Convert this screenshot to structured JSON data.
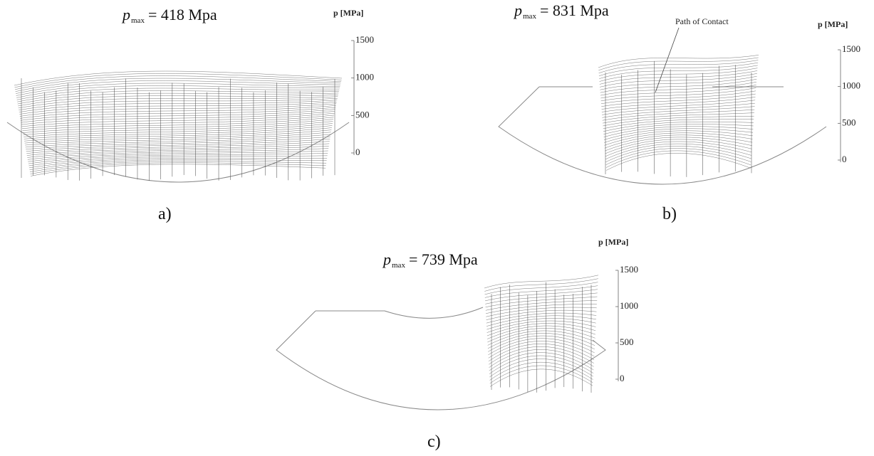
{
  "panels": [
    {
      "title": {
        "symbol": "p",
        "subscript": "max",
        "value": "= 418 Mpa"
      },
      "axis_label": "p [MPa]",
      "ylim": [
        0,
        1500
      ],
      "yticks": [
        0,
        500,
        1000,
        1500
      ],
      "label": "a)"
    },
    {
      "title": {
        "symbol": "p",
        "subscript": "max",
        "value": "= 831 Mpa"
      },
      "axis_label": "p [MPa]",
      "ylim": [
        0,
        1500
      ],
      "yticks": [
        0,
        500,
        1000,
        1500
      ],
      "label": "b)",
      "annotation": "Path of Contact"
    },
    {
      "title": {
        "symbol": "p",
        "subscript": "max",
        "value": "= 739 Mpa"
      },
      "axis_label": "p [MPa]",
      "ylim": [
        0,
        1500
      ],
      "yticks": [
        0,
        500,
        1000,
        1500
      ],
      "label": "c)"
    }
  ]
}
